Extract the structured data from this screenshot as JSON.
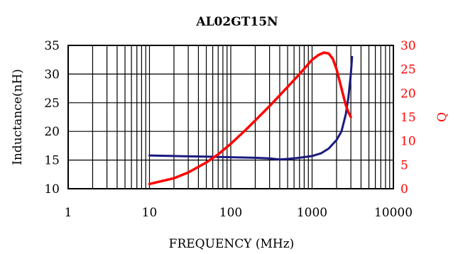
{
  "chart_data": {
    "type": "line",
    "title": "AL02GT15N",
    "xlabel": "FREQUENCY (MHz)",
    "ylabel": "Inductance(nH)",
    "y2label": "Q",
    "x_scale": "log",
    "xlim": [
      1,
      10000
    ],
    "ylim": [
      10,
      35
    ],
    "y2lim": [
      0,
      30
    ],
    "grid": true,
    "x_ticks": [
      "1",
      "10",
      "100",
      "1000",
      "10000"
    ],
    "y_ticks": [
      "10",
      "15",
      "20",
      "25",
      "30",
      "35"
    ],
    "y2_ticks": [
      "0",
      "5",
      "10",
      "15",
      "20",
      "25",
      "30"
    ],
    "colors": {
      "inductance": "#1a1a80",
      "q": "#ff0000",
      "right_axis": "#ff0000"
    },
    "series": [
      {
        "axis": "left",
        "x": [
          10,
          20,
          50,
          100,
          200,
          300,
          400,
          500,
          700,
          1000,
          1300,
          1600,
          2000,
          2300,
          2600,
          2800,
          3000,
          3100
        ],
        "y": [
          15.8,
          15.7,
          15.6,
          15.5,
          15.4,
          15.3,
          15.1,
          15.2,
          15.4,
          15.7,
          16.2,
          17.0,
          18.5,
          20.0,
          23.0,
          26.0,
          30.0,
          33.0
        ]
      },
      {
        "axis": "right",
        "x": [
          10,
          15,
          20,
          30,
          50,
          70,
          100,
          150,
          200,
          300,
          500,
          700,
          1000,
          1200,
          1400,
          1600,
          1800,
          2000,
          2300,
          2600,
          2800,
          3000
        ],
        "y": [
          1.0,
          1.7,
          2.2,
          3.4,
          5.5,
          7.2,
          9.4,
          12.2,
          14.3,
          17.3,
          21.3,
          24.0,
          27.0,
          28.0,
          28.5,
          28.3,
          27.2,
          25.0,
          21.0,
          17.5,
          16.0,
          15.0
        ]
      }
    ]
  }
}
